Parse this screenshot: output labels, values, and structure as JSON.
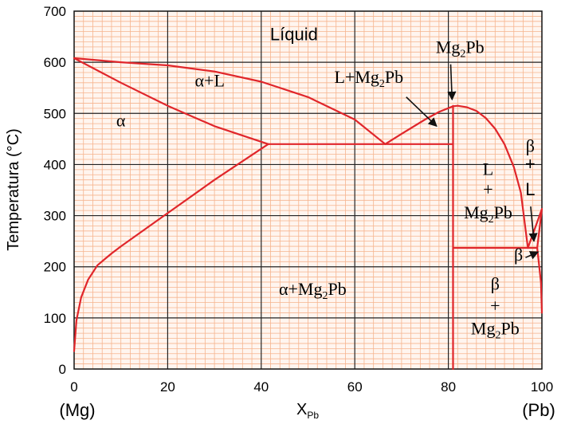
{
  "chart_data": {
    "type": "line",
    "title": "",
    "xlabel": "X",
    "xlabel_sub": "Pb",
    "ylabel": "Temperatura (°C)",
    "xlim": [
      0,
      100
    ],
    "ylim": [
      0,
      700
    ],
    "x_ticks": [
      "0",
      "20",
      "40",
      "60",
      "80",
      "100"
    ],
    "y_ticks": [
      "0",
      "100",
      "200",
      "300",
      "400",
      "500",
      "600",
      "700"
    ],
    "x_end_labels": {
      "left": "(Mg)",
      "right": "(Pb)"
    },
    "grid": true,
    "colors": {
      "curves": "#e0262b",
      "major_grid": "#222222",
      "minor_grid": "#f6b48e",
      "background": "#fff5ef"
    },
    "curves": [
      {
        "id": "liquidus-alpha",
        "points": [
          [
            0,
            608
          ],
          [
            10,
            600
          ],
          [
            20,
            594
          ],
          [
            30,
            582
          ],
          [
            40,
            562
          ],
          [
            50,
            532
          ],
          [
            60,
            488
          ],
          [
            66.5,
            440
          ]
        ]
      },
      {
        "id": "liquidus-mg2pb-left",
        "points": [
          [
            66.5,
            440
          ],
          [
            70,
            460
          ],
          [
            75,
            488
          ],
          [
            78,
            503
          ],
          [
            81,
            514
          ],
          [
            82,
            515
          ]
        ]
      },
      {
        "id": "liquidus-mg2pb-right",
        "points": [
          [
            82,
            515
          ],
          [
            84,
            512
          ],
          [
            86,
            505
          ],
          [
            88,
            491
          ],
          [
            90,
            470
          ],
          [
            92,
            440
          ],
          [
            94,
            395
          ],
          [
            95.5,
            345
          ],
          [
            97,
            237
          ]
        ]
      },
      {
        "id": "liquidus-beta",
        "points": [
          [
            97,
            237
          ],
          [
            100,
            313
          ]
        ]
      },
      {
        "id": "solidus-alpha",
        "points": [
          [
            0,
            608
          ],
          [
            10,
            560
          ],
          [
            20,
            515
          ],
          [
            30,
            475
          ],
          [
            41.5,
            440
          ]
        ]
      },
      {
        "id": "eutectic-alpha-mg2pb",
        "points": [
          [
            41.5,
            440
          ],
          [
            81,
            440
          ]
        ]
      },
      {
        "id": "solvus-alpha",
        "points": [
          [
            0,
            35
          ],
          [
            0.5,
            95
          ],
          [
            1.5,
            140
          ],
          [
            3,
            175
          ],
          [
            5,
            203
          ],
          [
            8,
            226
          ],
          [
            10,
            240
          ],
          [
            20,
            305
          ],
          [
            30,
            370
          ],
          [
            41.5,
            440
          ]
        ]
      },
      {
        "id": "mg2pb-compound-line",
        "points": [
          [
            81,
            0
          ],
          [
            81,
            515
          ]
        ]
      },
      {
        "id": "eutectic-mg2pb-beta",
        "points": [
          [
            81,
            237
          ],
          [
            99,
            237
          ]
        ]
      },
      {
        "id": "solidus-beta",
        "points": [
          [
            99,
            237
          ],
          [
            100,
            313
          ]
        ]
      },
      {
        "id": "solvus-beta",
        "points": [
          [
            99,
            237
          ],
          [
            99.8,
            170
          ],
          [
            100,
            110
          ]
        ]
      }
    ],
    "labels": [
      {
        "id": "liquid",
        "text": "Líquid",
        "x": 47,
        "y": 643,
        "font": "sans"
      },
      {
        "id": "alpha-liquid",
        "text": "α+L",
        "x": 29,
        "y": 553
      },
      {
        "id": "alpha",
        "text": "α",
        "x": 10,
        "y": 475
      },
      {
        "id": "l-mg2pb-top",
        "text": "L+Mg",
        "sub": "2",
        "tail": "Pb",
        "x": 63,
        "y": 560
      },
      {
        "id": "mg2pb-top",
        "text": "Mg",
        "sub": "2",
        "tail": "Pb",
        "x": 82.5,
        "y": 618
      },
      {
        "id": "l-right",
        "text": "L",
        "x": 88.5,
        "y": 380
      },
      {
        "id": "plus-right-1",
        "text": "+",
        "x": 88.5,
        "y": 340
      },
      {
        "id": "mg2pb-right",
        "text": "Mg",
        "sub": "2",
        "tail": "Pb",
        "x": 88.5,
        "y": 295
      },
      {
        "id": "beta-top",
        "text": "β",
        "x": 97.5,
        "y": 425
      },
      {
        "id": "plus-beta",
        "text": "+",
        "x": 97.5,
        "y": 390,
        "font": "sans"
      },
      {
        "id": "l-beta",
        "text": "L",
        "x": 97.5,
        "y": 340,
        "font": "sans"
      },
      {
        "id": "beta-mid",
        "text": "β",
        "x": 95,
        "y": 212
      },
      {
        "id": "alpha-mg2pb",
        "text": "α+Mg",
        "sub": "2",
        "tail": "Pb",
        "x": 51,
        "y": 145
      },
      {
        "id": "beta-bottom",
        "text": "β",
        "x": 90,
        "y": 155
      },
      {
        "id": "plus-bottom",
        "text": "+",
        "x": 90,
        "y": 112
      },
      {
        "id": "mg2pb-bottom",
        "text": "Mg",
        "sub": "2",
        "tail": "Pb",
        "x": 90,
        "y": 68
      }
    ],
    "arrows": [
      {
        "id": "arrow-mg2pb",
        "from": [
          80.5,
          596
        ],
        "to": [
          80.8,
          527
        ]
      },
      {
        "id": "arrow-l-mg2pb",
        "from": [
          71,
          532
        ],
        "to": [
          77.5,
          475
        ]
      },
      {
        "id": "arrow-l-beta",
        "from": [
          97.6,
          318
        ],
        "to": [
          98.3,
          250
        ]
      },
      {
        "id": "arrow-beta",
        "from": [
          96.5,
          218
        ],
        "to": [
          99.2,
          229
        ]
      }
    ]
  }
}
